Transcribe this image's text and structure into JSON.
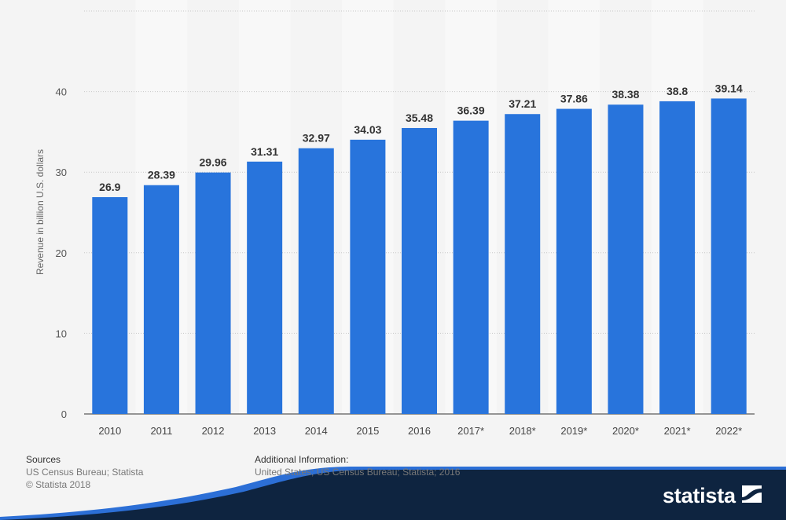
{
  "chart_data": {
    "type": "bar",
    "categories": [
      "2010",
      "2011",
      "2012",
      "2013",
      "2014",
      "2015",
      "2016",
      "2017*",
      "2018*",
      "2019*",
      "2020*",
      "2021*",
      "2022*"
    ],
    "values": [
      26.9,
      28.39,
      29.96,
      31.31,
      32.97,
      34.03,
      35.48,
      36.39,
      37.21,
      37.86,
      38.38,
      38.8,
      39.14
    ],
    "data_labels": [
      "26.9",
      "28.39",
      "29.96",
      "31.31",
      "32.97",
      "34.03",
      "35.48",
      "36.39",
      "37.21",
      "37.86",
      "38.38",
      "38.8",
      "39.14"
    ],
    "ylabel": "Revenue in billion U.S. dollars",
    "xlabel": "",
    "ylim": [
      0,
      50
    ],
    "yticks": [
      "0",
      "10",
      "20",
      "30",
      "40"
    ],
    "grid": true,
    "bar_color": "#2874dc",
    "background_color": "#f4f4f4",
    "stripe_color": "#f8f8f8"
  },
  "footer": {
    "sources_title": "Sources",
    "sources_lines": [
      "US Census Bureau; Statista",
      "© Statista 2018"
    ],
    "additional_title": "Additional Information:",
    "additional_text": "United States; US Census Bureau; Statista; 2016",
    "logo_text": "statista",
    "logo_colors": {
      "navy": "#0e2440",
      "blue": "#2c6fd6"
    }
  }
}
